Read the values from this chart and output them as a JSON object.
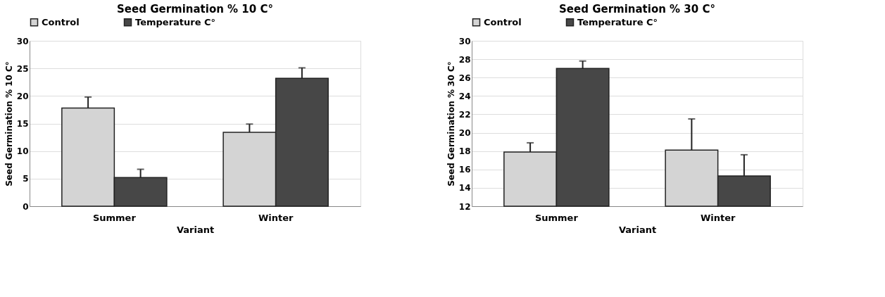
{
  "chart_data": [
    {
      "type": "bar",
      "title": "Seed Germination % 10 C°",
      "xlabel": "Variant",
      "ylabel": "Seed Germination % 10 C°",
      "categories": [
        "Summer",
        "Winter"
      ],
      "ylim": [
        0,
        30
      ],
      "yticks": [
        0,
        5,
        10,
        15,
        20,
        25,
        30
      ],
      "grid": "y",
      "legend": "top",
      "series": [
        {
          "name": "Control",
          "color": "#d4d4d4",
          "values": [
            17.8,
            13.4
          ],
          "errors": [
            [
              17.8,
              19.8
            ],
            [
              13.4,
              14.9
            ]
          ]
        },
        {
          "name": "Temperature C°",
          "color": "#474747",
          "values": [
            5.2,
            23.2
          ],
          "errors": [
            [
              5.2,
              6.7
            ],
            [
              23.2,
              25.1
            ]
          ]
        }
      ]
    },
    {
      "type": "bar",
      "title": "Seed Germination % 30 C°",
      "xlabel": "Variant",
      "ylabel": "Seed Germination % 30 C°",
      "categories": [
        "Summer",
        "Winter"
      ],
      "ylim": [
        12,
        30
      ],
      "yticks": [
        12,
        14,
        16,
        18,
        20,
        22,
        24,
        26,
        28,
        30
      ],
      "grid": "y",
      "legend": "top",
      "series": [
        {
          "name": "Control",
          "color": "#d4d4d4",
          "values": [
            17.9,
            18.1
          ],
          "errors": [
            [
              17.9,
              18.9
            ],
            [
              18.1,
              21.5
            ]
          ]
        },
        {
          "name": "Temperature C°",
          "color": "#474747",
          "values": [
            27.0,
            15.3
          ],
          "errors": [
            [
              27.0,
              27.8
            ],
            [
              15.3,
              17.6
            ]
          ]
        }
      ]
    }
  ]
}
